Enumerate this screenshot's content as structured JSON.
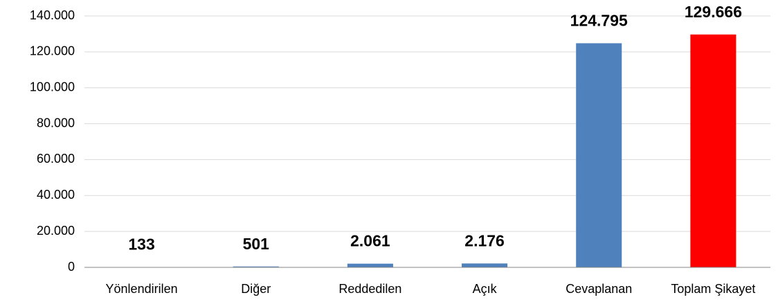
{
  "chart_data": {
    "type": "bar",
    "categories": [
      "Yönlendirilen",
      "Diğer",
      "Reddedilen",
      "Açık",
      "Cevaplanan",
      "Toplam Şikayet"
    ],
    "values": [
      133,
      501,
      2061,
      2176,
      124795,
      129666
    ],
    "value_labels": [
      "133",
      "501",
      "2.061",
      "2.176",
      "124.795",
      "129.666"
    ],
    "colors": [
      "#4f81bd",
      "#4f81bd",
      "#4f81bd",
      "#4f81bd",
      "#4f81bd",
      "#ff0000"
    ],
    "ylim": [
      0,
      140000
    ],
    "yticks": [
      0,
      {
        "value": 20000,
        "label": "20.000"
      },
      {
        "value": 40000,
        "label": "40.000"
      },
      {
        "value": 60000,
        "label": "60.000"
      },
      {
        "value": 80000,
        "label": "80.000"
      },
      {
        "value": 100000,
        "label": "100.000"
      },
      {
        "value": 120000,
        "label": "120.000"
      },
      {
        "value": 140000,
        "label": "140.000"
      }
    ],
    "grid": true
  }
}
